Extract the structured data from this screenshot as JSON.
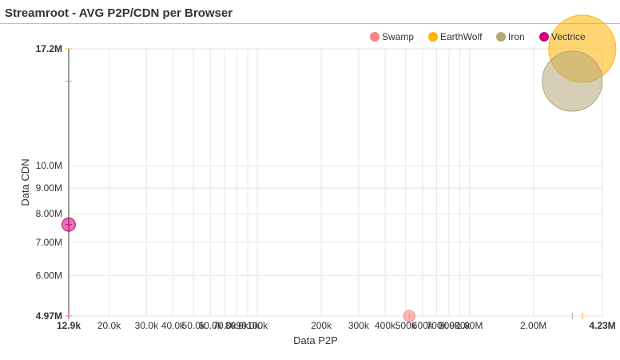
{
  "panel": {
    "title": "Streamroot - AVG P2P/CDN per Browser"
  },
  "chart_data": {
    "type": "scatter",
    "subtype": "bubble",
    "title": "Streamroot - AVG P2P/CDN per Browser",
    "xlabel": "Data P2P",
    "ylabel": "Data CDN",
    "x_scale": "log",
    "y_scale": "log",
    "xlim": [
      12900,
      4230000
    ],
    "ylim": [
      4970000,
      17200000
    ],
    "grid": true,
    "legend_position": "top-right",
    "x_ticks": [
      {
        "value": 12900,
        "label": "12.9k",
        "bold": true
      },
      {
        "value": 20000,
        "label": "20.0k"
      },
      {
        "value": 30000,
        "label": "30.0k"
      },
      {
        "value": 40000,
        "label": "40.0k"
      },
      {
        "value": 50000,
        "label": "50.0k"
      },
      {
        "value": 60000,
        "label": "60.0k"
      },
      {
        "value": 70000,
        "label": "70.0k"
      },
      {
        "value": 80000,
        "label": "80.0k"
      },
      {
        "value": 90000,
        "label": "90.0k"
      },
      {
        "value": 100000,
        "label": "100k"
      },
      {
        "value": 200000,
        "label": "200k"
      },
      {
        "value": 300000,
        "label": "300k"
      },
      {
        "value": 400000,
        "label": "400k"
      },
      {
        "value": 500000,
        "label": "500k"
      },
      {
        "value": 600000,
        "label": "600k"
      },
      {
        "value": 700000,
        "label": "700k"
      },
      {
        "value": 800000,
        "label": "800k"
      },
      {
        "value": 900000,
        "label": "900k"
      },
      {
        "value": 1000000,
        "label": "1.00M"
      },
      {
        "value": 2000000,
        "label": "2.00M"
      },
      {
        "value": 4230000,
        "label": "4.23M",
        "bold": true
      }
    ],
    "y_ticks": [
      {
        "value": 4970000,
        "label": "4.97M",
        "bold": true
      },
      {
        "value": 6000000,
        "label": "6.00M"
      },
      {
        "value": 7000000,
        "label": "7.00M"
      },
      {
        "value": 8000000,
        "label": "8.00M"
      },
      {
        "value": 9000000,
        "label": "9.00M"
      },
      {
        "value": 10000000,
        "label": "10.0M"
      },
      {
        "value": 17200000,
        "label": "17.2M",
        "bold": true
      }
    ],
    "series": [
      {
        "name": "Swamp",
        "color": "#ff7f7f",
        "points": [
          {
            "x": 520000,
            "y": 4970000,
            "size": 0.01
          }
        ]
      },
      {
        "name": "EarthWolf",
        "color": "#ffb300",
        "points": [
          {
            "x": 3400000,
            "y": 17200000,
            "size": 1.0
          }
        ]
      },
      {
        "name": "Iron",
        "color": "#b5a77a",
        "points": [
          {
            "x": 3050000,
            "y": 14800000,
            "size": 0.8
          }
        ]
      },
      {
        "name": "Vectrice",
        "color": "#d1007a",
        "points": [
          {
            "x": 12900,
            "y": 7600000,
            "size": 0.04
          }
        ]
      }
    ]
  }
}
